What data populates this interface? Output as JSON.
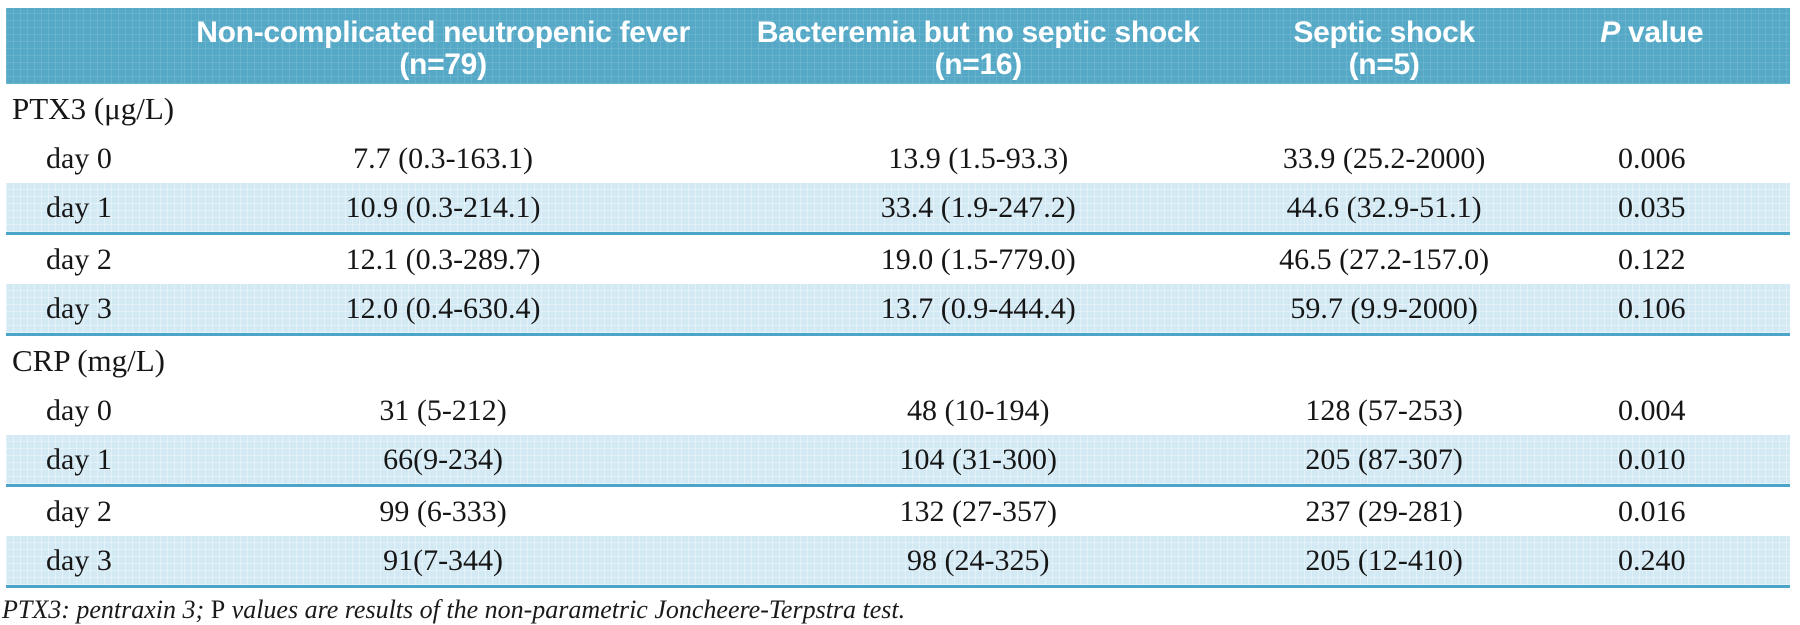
{
  "table": {
    "header": {
      "columns": [
        {
          "title_parts": [
            {
              "text": "Non-complicated neutropenic fever",
              "italic": false
            }
          ],
          "subtitle": "(n=79)"
        },
        {
          "title_parts": [
            {
              "text": "Bacteremia but no septic shock",
              "italic": false
            }
          ],
          "subtitle": "(n=16)"
        },
        {
          "title_parts": [
            {
              "text": "Septic shock",
              "italic": false
            }
          ],
          "subtitle": "(n=5)"
        },
        {
          "title_parts": [
            {
              "text": "P",
              "italic": true
            },
            {
              "text": " value",
              "italic": false
            }
          ],
          "subtitle": ""
        }
      ]
    },
    "sections": [
      {
        "title": "PTX3 (μg/L)",
        "rows": [
          {
            "label": "day 0",
            "shaded": false,
            "values": [
              "7.7 (0.3-163.1)",
              "13.9 (1.5-93.3)",
              "33.9 (25.2-2000)",
              "0.006"
            ]
          },
          {
            "label": "day 1",
            "shaded": true,
            "values": [
              "10.9 (0.3-214.1)",
              "33.4 (1.9-247.2)",
              "44.6 (32.9-51.1)",
              "0.035"
            ]
          },
          {
            "label": "day 2",
            "shaded": false,
            "values": [
              "12.1 (0.3-289.7)",
              "19.0 (1.5-779.0)",
              "46.5 (27.2-157.0)",
              "0.122"
            ]
          },
          {
            "label": "day 3",
            "shaded": true,
            "values": [
              "12.0 (0.4-630.4)",
              "13.7 (0.9-444.4)",
              "59.7 (9.9-2000)",
              "0.106"
            ]
          }
        ]
      },
      {
        "title": "CRP (mg/L)",
        "rows": [
          {
            "label": "day 0",
            "shaded": false,
            "values": [
              "31 (5-212)",
              "48 (10-194)",
              "128 (57-253)",
              "0.004"
            ]
          },
          {
            "label": "day 1",
            "shaded": true,
            "values": [
              "66(9-234)",
              "104 (31-300)",
              "205 (87-307)",
              "0.010"
            ]
          },
          {
            "label": "day 2",
            "shaded": false,
            "values": [
              "99 (6-333)",
              "132 (27-357)",
              "237 (29-281)",
              "0.016"
            ]
          },
          {
            "label": "day 3",
            "shaded": true,
            "values": [
              "91(7-344)",
              "98 (24-325)",
              "205 (12-410)",
              "0.240"
            ]
          }
        ]
      }
    ],
    "footnote_parts": [
      {
        "text": "PTX3: pentraxin 3; ",
        "italic": true
      },
      {
        "text": "P",
        "italic": false
      },
      {
        "text": " values are results of the non-parametric Joncheere-Terpstra test.",
        "italic": true
      }
    ]
  },
  "colors": {
    "header_bg": "#55a9c7",
    "shaded_row_bg": "#d3e9f4",
    "divider": "#4aa5c8",
    "header_text": "#ffffff",
    "body_text": "#161616"
  }
}
